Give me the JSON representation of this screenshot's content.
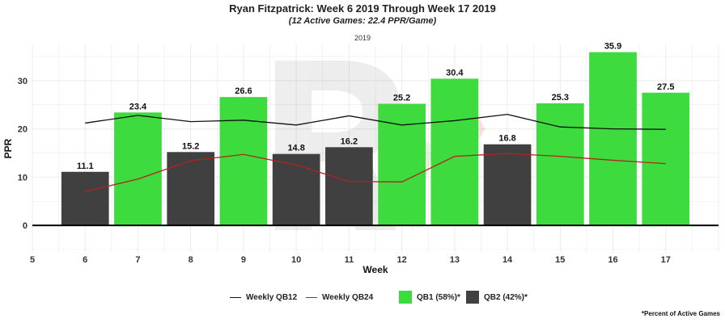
{
  "title": "Ryan Fitzpatrick: Week 6 2019 Through Week 17 2019",
  "subtitle": "(12 Active Games: 22.4 PPR/Game)",
  "panel_label": "2019",
  "footnote": "*Percent of Active Games",
  "colors": {
    "qb1": "#3ddb3d",
    "qb2": "#404040",
    "qb12_line": "#111111",
    "qb24_line": "#b22222"
  },
  "legend": {
    "qb12": "Weekly QB12",
    "qb24": "Weekly QB24",
    "qb1": "QB1 (58%)*",
    "qb2": "QB2 (42%)*"
  },
  "chart_data": {
    "type": "bar",
    "xlabel": "Week",
    "ylabel": "PPR",
    "xlim": [
      5,
      18
    ],
    "ylim": [
      -5.5,
      37.5
    ],
    "xticks": [
      5,
      6,
      7,
      8,
      9,
      10,
      11,
      12,
      13,
      14,
      15,
      16,
      17
    ],
    "yticks": [
      0,
      10,
      20,
      30
    ],
    "bars": [
      {
        "week": 6,
        "value": 11.1,
        "label": "11.1",
        "tier": "QB2"
      },
      {
        "week": 7,
        "value": 23.4,
        "label": "23.4",
        "tier": "QB1"
      },
      {
        "week": 8,
        "value": 15.2,
        "label": "15.2",
        "tier": "QB2"
      },
      {
        "week": 9,
        "value": 26.6,
        "label": "26.6",
        "tier": "QB1"
      },
      {
        "week": 10,
        "value": 14.8,
        "label": "14.8",
        "tier": "QB2"
      },
      {
        "week": 11,
        "value": 16.2,
        "label": "16.2",
        "tier": "QB2"
      },
      {
        "week": 12,
        "value": 25.2,
        "label": "25.2",
        "tier": "QB1"
      },
      {
        "week": 13,
        "value": 30.4,
        "label": "30.4",
        "tier": "QB1"
      },
      {
        "week": 14,
        "value": 16.8,
        "label": "16.8",
        "tier": "QB2"
      },
      {
        "week": 15,
        "value": 25.3,
        "label": "25.3",
        "tier": "QB1"
      },
      {
        "week": 16,
        "value": 35.9,
        "label": "35.9",
        "tier": "QB1"
      },
      {
        "week": 17,
        "value": 27.5,
        "label": "27.5",
        "tier": "QB1"
      }
    ],
    "lines": [
      {
        "name": "Weekly QB12",
        "weeks": [
          6,
          7,
          8,
          9,
          10,
          11,
          12,
          13,
          14,
          15,
          16,
          17
        ],
        "values": [
          21.2,
          22.8,
          21.5,
          21.8,
          20.8,
          22.7,
          20.8,
          21.7,
          23.0,
          20.4,
          20.0,
          19.9
        ]
      },
      {
        "name": "Weekly QB24",
        "weeks": [
          6,
          7,
          8,
          9,
          10,
          11,
          12,
          13,
          14,
          15,
          16,
          17
        ],
        "values": [
          7.0,
          9.6,
          13.4,
          14.7,
          12.5,
          9.1,
          9.0,
          14.3,
          14.9,
          14.3,
          13.5,
          12.8
        ]
      }
    ]
  }
}
